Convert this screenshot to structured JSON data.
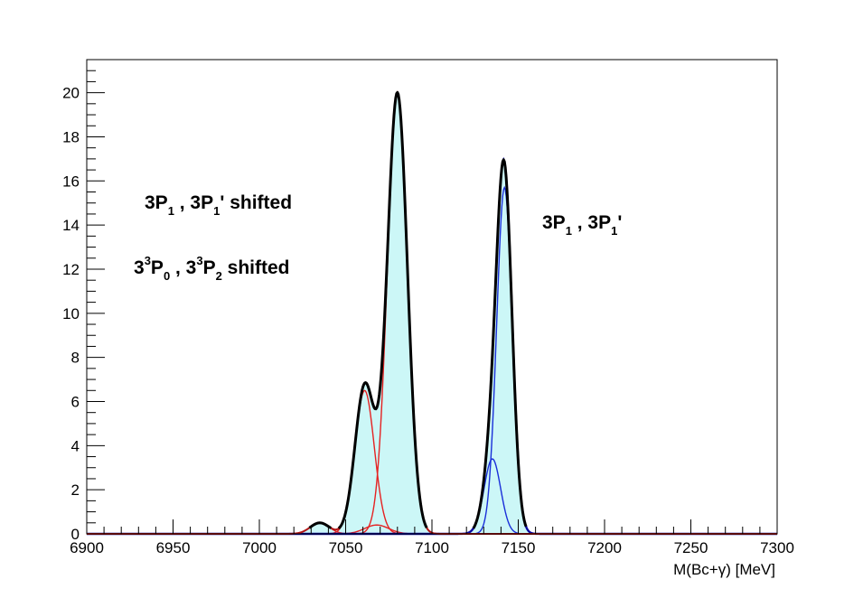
{
  "chart_data": {
    "type": "line",
    "xlabel": "M(Bc+γ) [MeV]",
    "ylabel": "",
    "xlim": [
      6900,
      7300
    ],
    "ylim": [
      0,
      21.5
    ],
    "xticks": [
      "6900",
      "6950",
      "7000",
      "7050",
      "7100",
      "7150",
      "7200",
      "7250",
      "7300"
    ],
    "yticks": [
      "0",
      "2",
      "4",
      "6",
      "8",
      "10",
      "12",
      "14",
      "16",
      "18",
      "20"
    ],
    "grid": false,
    "legend": "none",
    "colors": {
      "total": "#000000",
      "fill": "#ccf7f7",
      "red_components": "#e52222",
      "blue_components": "#1a2fd9",
      "blue_total": "#0a0aa0"
    },
    "components": [
      {
        "group": "red",
        "mean": 7035,
        "sigma": 5.5,
        "peak": 0.5
      },
      {
        "group": "red",
        "mean": 7061,
        "sigma": 5.6,
        "peak": 6.5
      },
      {
        "group": "red",
        "mean": 7068,
        "sigma": 7.0,
        "peak": 0.4
      },
      {
        "group": "red",
        "mean": 7080,
        "sigma": 5.8,
        "peak": 19.9
      },
      {
        "group": "blue",
        "mean": 7135,
        "sigma": 4.8,
        "peak": 3.4
      },
      {
        "group": "blue",
        "mean": 7142,
        "sigma": 4.5,
        "peak": 15.7
      }
    ],
    "annotations": {
      "left_line1": {
        "n1": "3P",
        "s1": "1",
        "mid": " , 3P",
        "s2": "1",
        "tail": "' shifted"
      },
      "left_line2": {
        "a": "3",
        "sup1": "3",
        "b": "P",
        "sub1": "0",
        "c": " , 3",
        "sup2": "3",
        "d": "P",
        "sub2": "2",
        "e": " shifted"
      },
      "right": {
        "n1": "3P",
        "s1": "1",
        "mid": " , 3P",
        "s2": "1",
        "tail": "'"
      }
    }
  }
}
